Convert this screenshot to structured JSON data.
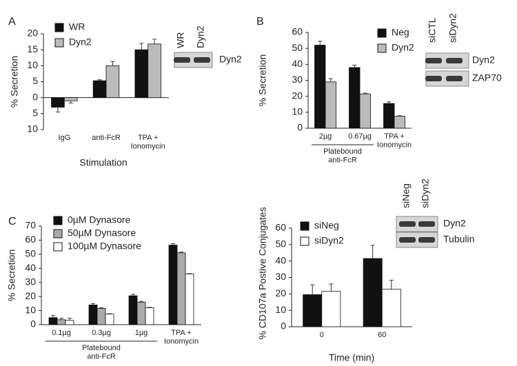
{
  "chart_data": [
    {
      "type": "bar",
      "panel": "A",
      "ylabel": "% Secretion",
      "xlabel": "Stimulation",
      "categories": [
        "IgG",
        "anti-FcR",
        "TPA +\nIonomycin"
      ],
      "series": [
        {
          "name": "WR",
          "color": "#111111",
          "values": [
            -3,
            5.3,
            15
          ],
          "errors": [
            1.5,
            0.3,
            2
          ]
        },
        {
          "name": "Dyn2",
          "color": "#bbbbbb",
          "values": [
            -1,
            10,
            16.8
          ],
          "errors": [
            0.7,
            1.3,
            1.5
          ]
        }
      ],
      "ylim": [
        -10,
        20
      ],
      "yticks": [
        {
          "value": -10,
          "label": "10"
        },
        {
          "value": -5,
          "label": "5"
        },
        0,
        5,
        10,
        15,
        20
      ],
      "blot": {
        "lanes": [
          "WR",
          "Dyn2"
        ],
        "bands": [
          "Dyn2"
        ]
      }
    },
    {
      "type": "bar",
      "panel": "B",
      "ylabel": "% Secretion",
      "categories": [
        "2µg",
        "0.67µg",
        "TPA +\nIonomycin"
      ],
      "group_label": "Platebound\nanti-FcR",
      "series": [
        {
          "name": "Neg",
          "color": "#111111",
          "values": [
            52,
            38,
            15.5
          ],
          "errors": [
            2.5,
            1.5,
            1
          ]
        },
        {
          "name": "Dyn2",
          "color": "#bbbbbb",
          "values": [
            29,
            21.5,
            7.5
          ],
          "errors": [
            2,
            0.5,
            0.3
          ]
        }
      ],
      "ylim": [
        0,
        60
      ],
      "yticks": [
        0,
        10,
        20,
        30,
        40,
        50,
        60
      ],
      "blot": {
        "lanes": [
          "siCTL",
          "siDyn2"
        ],
        "bands": [
          "Dyn2",
          "ZAP70"
        ]
      }
    },
    {
      "type": "bar",
      "panel": "C",
      "ylabel": "% Secretion",
      "categories": [
        "0.1µg",
        "0.3µg",
        "1µg",
        "TPA +\nIonomycin"
      ],
      "group_label": "Platebound\nanti-FcR",
      "series": [
        {
          "name": "0µM Dynasore",
          "color": "#111111",
          "values": [
            5,
            14,
            20.5,
            56.5
          ],
          "errors": [
            1.5,
            1,
            1,
            1
          ]
        },
        {
          "name": "50µM Dynasore",
          "color": "#aaaaaa",
          "values": [
            3.5,
            11.5,
            16,
            51
          ],
          "errors": [
            1,
            0.5,
            0.5,
            0.5
          ]
        },
        {
          "name": "100µM Dynasore",
          "color": "#ffffff",
          "values": [
            3,
            7.5,
            12,
            36
          ],
          "errors": [
            1.5,
            0.3,
            0.3,
            0.3
          ]
        }
      ],
      "ylim": [
        0,
        70
      ],
      "yticks": [
        0,
        10,
        20,
        30,
        40,
        50,
        60,
        70
      ]
    },
    {
      "type": "bar",
      "ylabel": "% CD107a Postive Conjugates",
      "xlabel": "Time (min)",
      "categories": [
        "0",
        "60"
      ],
      "series": [
        {
          "name": "siNeg",
          "color": "#111111",
          "values": [
            19.5,
            41.5
          ],
          "errors": [
            6,
            8
          ]
        },
        {
          "name": "siDyn2",
          "color": "#ffffff",
          "values": [
            21.5,
            22.8
          ],
          "errors": [
            4.5,
            5.5
          ]
        }
      ],
      "ylim": [
        0,
        65
      ],
      "yticks": [
        0,
        10,
        20,
        30,
        40,
        50,
        60
      ],
      "blot": {
        "lanes": [
          "siNeg",
          "siDyn2"
        ],
        "bands": [
          "Dyn2",
          "Tubulin"
        ]
      }
    }
  ]
}
